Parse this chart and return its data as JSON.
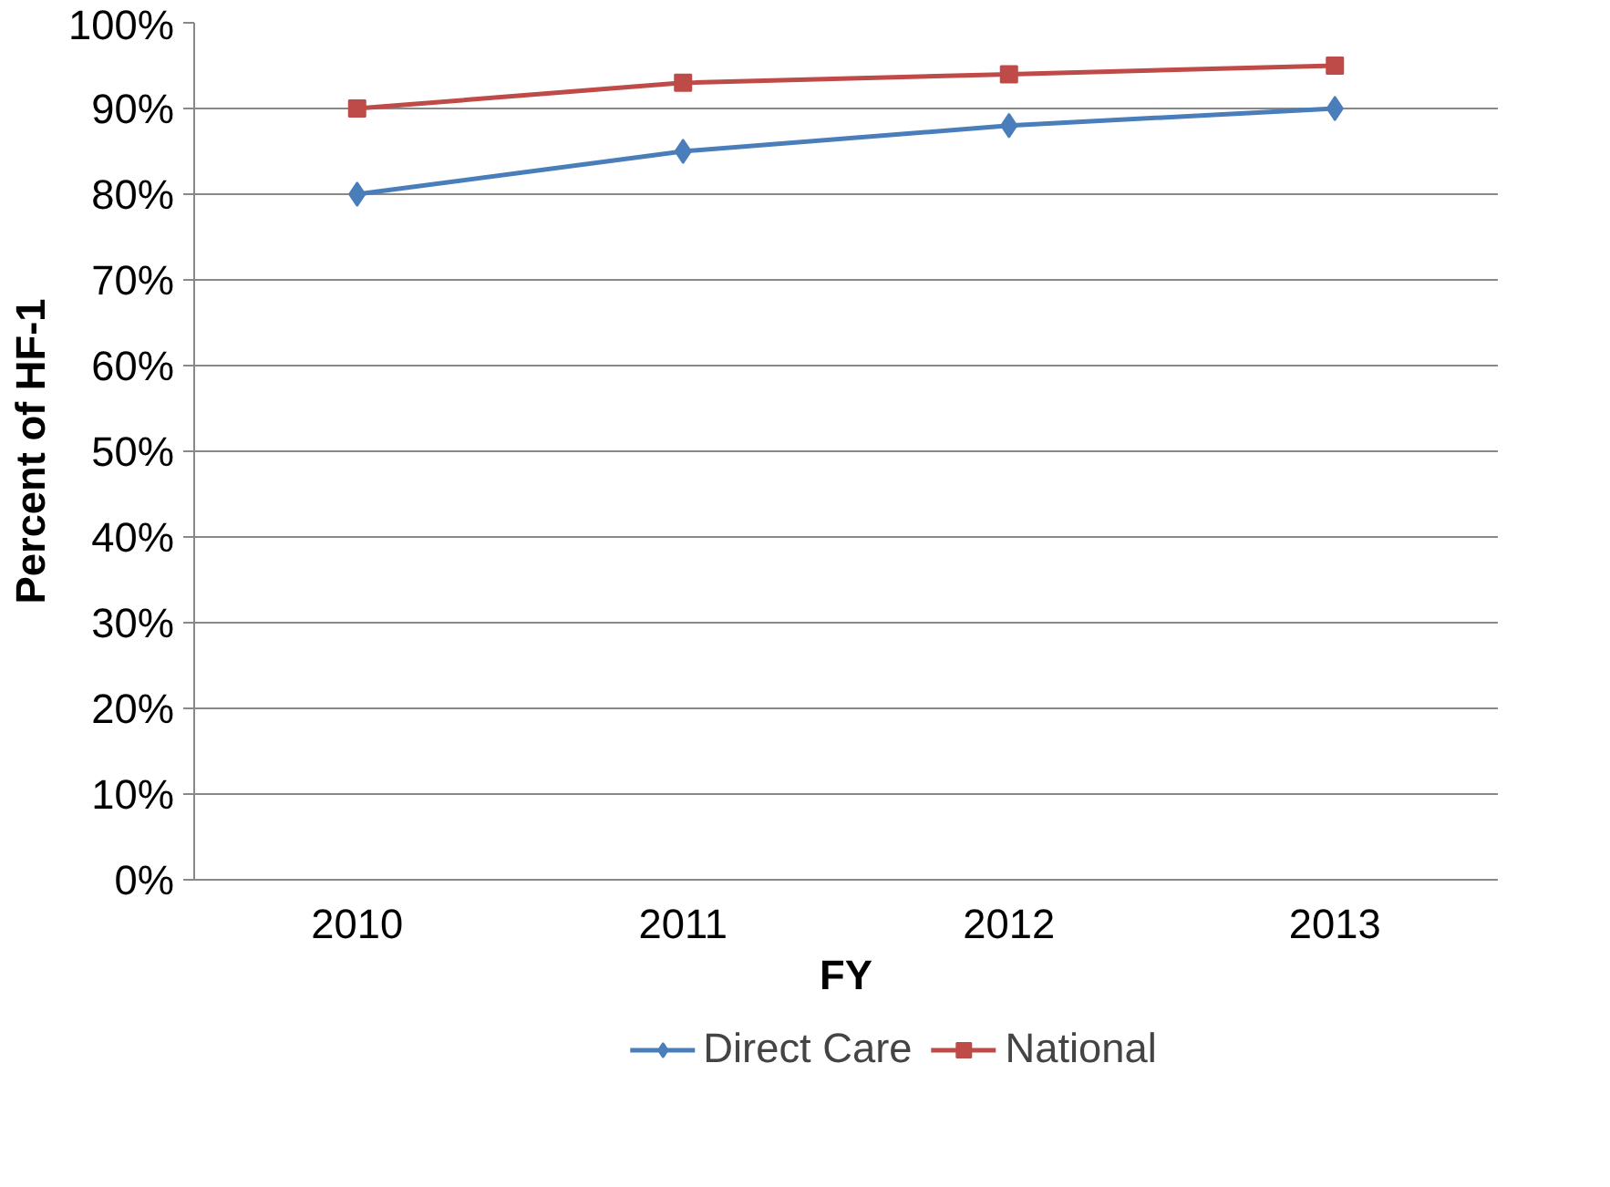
{
  "chart_data": {
    "type": "line",
    "xlabel": "FY",
    "ylabel": "Percent of HF-1",
    "categories": [
      "2010",
      "2011",
      "2012",
      "2013"
    ],
    "series": [
      {
        "name": "Direct Care",
        "color": "#4a7ebb",
        "marker": "diamond",
        "values": [
          80,
          85,
          88,
          90
        ]
      },
      {
        "name": "National",
        "color": "#be4b48",
        "marker": "square",
        "values": [
          90,
          93,
          94,
          95
        ]
      }
    ],
    "ylim": [
      0,
      100
    ],
    "yticks": [
      {
        "value": 0,
        "label": "0%"
      },
      {
        "value": 10,
        "label": "10%"
      },
      {
        "value": 20,
        "label": "20%"
      },
      {
        "value": 30,
        "label": "30%"
      },
      {
        "value": 40,
        "label": "40%"
      },
      {
        "value": 50,
        "label": "50%"
      },
      {
        "value": 60,
        "label": "60%"
      },
      {
        "value": 70,
        "label": "70%"
      },
      {
        "value": 80,
        "label": "80%"
      },
      {
        "value": 90,
        "label": "90%"
      },
      {
        "value": 100,
        "label": "100%"
      }
    ],
    "grid": "y",
    "legend": "bottom",
    "line_style": "solid"
  }
}
